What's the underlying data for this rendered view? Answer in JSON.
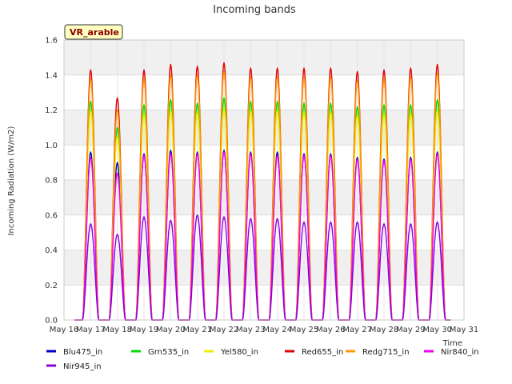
{
  "chart_data": {
    "type": "line",
    "title": "Incoming bands",
    "ylabel": "Incoming Radiation (W/m2)",
    "xlabel": "Time",
    "station_label": "VR_arable",
    "ylim": [
      0,
      1.6
    ],
    "xlim": [
      16,
      31
    ],
    "y_ticks": [
      "0.0",
      "0.2",
      "0.4",
      "0.6",
      "0.8",
      "1.0",
      "1.2",
      "1.4",
      "1.6"
    ],
    "x_ticks": [
      "May 16",
      "May 17",
      "May 18",
      "May 19",
      "May 20",
      "May 21",
      "May 22",
      "May 23",
      "May 24",
      "May 25",
      "May 26",
      "May 27",
      "May 28",
      "May 29",
      "May 30",
      "May 31"
    ],
    "x_tick_values": [
      16,
      17,
      18,
      19,
      20,
      21,
      22,
      23,
      24,
      25,
      26,
      27,
      28,
      29,
      30,
      31
    ],
    "day_centers": [
      17,
      18,
      19,
      20,
      21,
      22,
      23,
      24,
      25,
      26,
      27,
      28,
      29,
      30
    ],
    "grid": true,
    "legend_position": "bottom",
    "series": [
      {
        "name": "Blu475_in",
        "color": "#0000cc",
        "daily_peaks": [
          0.96,
          0.9,
          0.95,
          0.97,
          0.96,
          0.97,
          0.96,
          0.96,
          0.95,
          0.95,
          0.93,
          0.92,
          0.93,
          0.96
        ]
      },
      {
        "name": "Grn535_in",
        "color": "#00dd00",
        "daily_peaks": [
          1.25,
          1.1,
          1.23,
          1.26,
          1.24,
          1.27,
          1.25,
          1.25,
          1.24,
          1.24,
          1.22,
          1.23,
          1.23,
          1.26
        ]
      },
      {
        "name": "Yel580_in",
        "color": "#eeee00",
        "daily_peaks": [
          1.2,
          1.05,
          1.18,
          1.2,
          1.19,
          1.21,
          1.2,
          1.2,
          1.19,
          1.19,
          1.17,
          1.18,
          1.18,
          1.2
        ]
      },
      {
        "name": "Red655_in",
        "color": "#dd0000",
        "daily_peaks": [
          1.43,
          1.27,
          1.43,
          1.46,
          1.45,
          1.47,
          1.44,
          1.44,
          1.44,
          1.44,
          1.42,
          1.43,
          1.44,
          1.46
        ]
      },
      {
        "name": "Redg715_in",
        "color": "#ff9900",
        "daily_peaks": [
          1.38,
          1.2,
          1.38,
          1.4,
          1.4,
          1.42,
          1.39,
          1.39,
          1.39,
          1.39,
          1.37,
          1.38,
          1.39,
          1.41
        ]
      },
      {
        "name": "Nir840_in",
        "color": "#ee00ee",
        "daily_peaks": [
          0.93,
          0.84,
          0.94,
          0.95,
          0.95,
          0.96,
          0.95,
          0.94,
          0.94,
          0.94,
          0.92,
          0.91,
          0.92,
          0.95
        ]
      },
      {
        "name": "Nir945_in",
        "color": "#8800dd",
        "daily_peaks": [
          0.55,
          0.49,
          0.59,
          0.57,
          0.6,
          0.59,
          0.58,
          0.58,
          0.56,
          0.56,
          0.56,
          0.55,
          0.55,
          0.56
        ]
      }
    ]
  }
}
